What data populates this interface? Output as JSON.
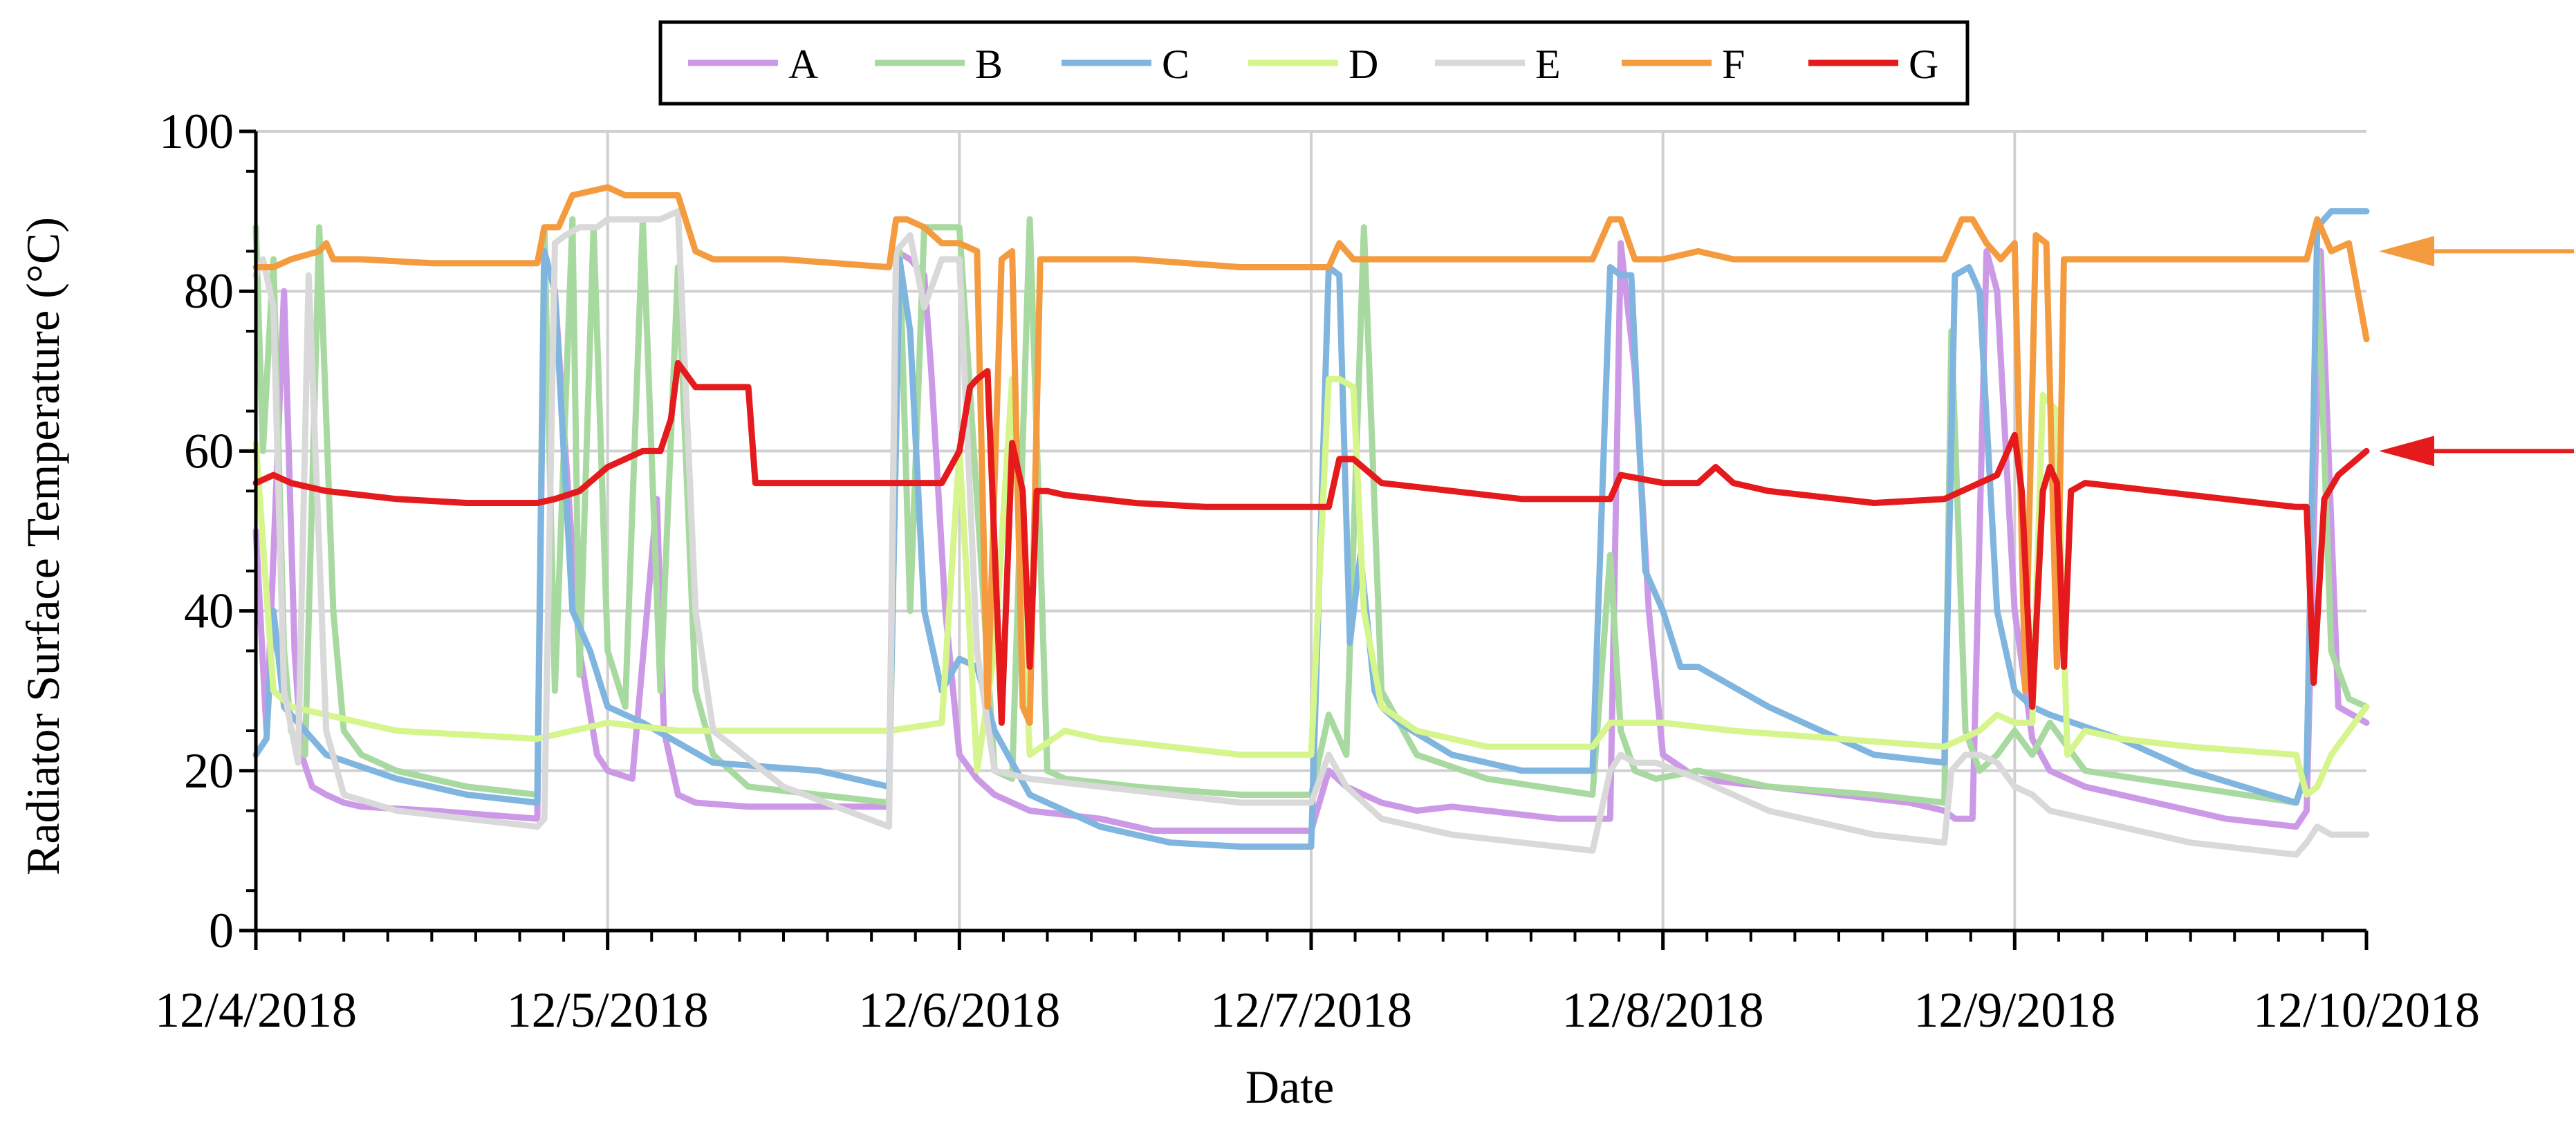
{
  "chart_data": {
    "type": "line",
    "title": "",
    "xlabel": "Date",
    "ylabel": "Radiator Surface Temperature (°C)",
    "ylim": [
      0,
      100
    ],
    "xlim": [
      0,
      6
    ],
    "y_ticks": [
      0,
      20,
      40,
      60,
      80,
      100
    ],
    "x_tick_labels": [
      "12/4/2018",
      "12/5/2018",
      "12/6/2018",
      "12/7/2018",
      "12/8/2018",
      "12/9/2018",
      "12/10/2018"
    ],
    "grid": true,
    "legend": "top-center",
    "annotations": [
      {
        "type": "arrow",
        "points_to_series": "F",
        "value": 85,
        "color": "#F39B3E"
      },
      {
        "type": "arrow",
        "points_to_series": "G",
        "value": 60,
        "color": "#E41A1C"
      }
    ],
    "series": [
      {
        "name": "A",
        "color": "#CC99E6",
        "x": [
          0,
          0.03,
          0.08,
          0.11,
          0.13,
          0.16,
          0.2,
          0.25,
          0.3,
          0.5,
          0.8,
          0.82,
          0.85,
          0.88,
          0.92,
          0.97,
          1.0,
          1.07,
          1.14,
          1.16,
          1.2,
          1.25,
          1.4,
          1.6,
          1.8,
          1.82,
          1.86,
          1.9,
          1.92,
          1.96,
          2.0,
          2.05,
          2.1,
          2.2,
          2.4,
          2.5,
          2.55,
          2.6,
          2.8,
          3.0,
          3.05,
          3.1,
          3.2,
          3.3,
          3.4,
          3.5,
          3.7,
          3.85,
          3.88,
          3.92,
          3.96,
          4.0,
          4.1,
          4.3,
          4.5,
          4.7,
          4.8,
          4.83,
          4.88,
          4.92,
          4.95,
          5.0,
          5.05,
          5.1,
          5.2,
          5.4,
          5.5,
          5.6,
          5.8,
          5.83,
          5.87,
          5.92,
          6.0
        ],
        "y": [
          50,
          25,
          80,
          35,
          22,
          18,
          17,
          16,
          15.5,
          15,
          14,
          85,
          80,
          60,
          35,
          22,
          20,
          19,
          54,
          25,
          17,
          16,
          15.5,
          15.5,
          15.5,
          85,
          84,
          82,
          70,
          40,
          22,
          19,
          17,
          15,
          14,
          13,
          12.5,
          12.5,
          12.5,
          12.5,
          20,
          18,
          16,
          15,
          15.5,
          15,
          14,
          14,
          86,
          70,
          40,
          22,
          19,
          18,
          17,
          16,
          15,
          14,
          14,
          85,
          80,
          40,
          24,
          20,
          18,
          16,
          15,
          14,
          13,
          15,
          85,
          28,
          26
        ]
      },
      {
        "name": "B",
        "color": "#A8D9A0",
        "x": [
          0,
          0.02,
          0.05,
          0.08,
          0.1,
          0.14,
          0.18,
          0.22,
          0.25,
          0.3,
          0.4,
          0.6,
          0.8,
          0.82,
          0.85,
          0.9,
          0.92,
          0.96,
          1.0,
          1.05,
          1.1,
          1.15,
          1.2,
          1.25,
          1.3,
          1.4,
          1.6,
          1.8,
          1.83,
          1.86,
          1.9,
          1.95,
          2.0,
          2.1,
          2.15,
          2.2,
          2.25,
          2.3,
          2.5,
          2.8,
          3.0,
          3.05,
          3.1,
          3.15,
          3.2,
          3.3,
          3.5,
          3.8,
          3.85,
          3.88,
          3.92,
          3.98,
          4.1,
          4.3,
          4.6,
          4.8,
          4.82,
          4.86,
          4.9,
          4.95,
          5.0,
          5.05,
          5.1,
          5.2,
          5.5,
          5.8,
          5.83,
          5.86,
          5.9,
          5.95,
          6.0
        ],
        "y": [
          88,
          60,
          84,
          35,
          25,
          22,
          88,
          40,
          25,
          22,
          20,
          18,
          17,
          88,
          30,
          89,
          32,
          88,
          35,
          28,
          89,
          30,
          83,
          30,
          22,
          18,
          17,
          16,
          85,
          40,
          88,
          88,
          88,
          20,
          19,
          89,
          20,
          19,
          18,
          17,
          17,
          27,
          22,
          88,
          30,
          22,
          19,
          17,
          47,
          25,
          20,
          19,
          20,
          18,
          17,
          16,
          75,
          25,
          20,
          22,
          25,
          22,
          26,
          20,
          18,
          16,
          20,
          85,
          35,
          29,
          28
        ]
      },
      {
        "name": "C",
        "color": "#7FB5DF",
        "x": [
          0,
          0.03,
          0.05,
          0.08,
          0.12,
          0.2,
          0.4,
          0.6,
          0.8,
          0.82,
          0.85,
          0.9,
          0.95,
          1.0,
          1.1,
          1.3,
          1.6,
          1.8,
          1.83,
          1.86,
          1.9,
          1.95,
          2.0,
          2.05,
          2.1,
          2.2,
          2.4,
          2.6,
          2.8,
          3.0,
          3.05,
          3.08,
          3.11,
          3.14,
          3.18,
          3.2,
          3.25,
          3.4,
          3.6,
          3.8,
          3.85,
          3.88,
          3.91,
          3.95,
          4.0,
          4.05,
          4.1,
          4.3,
          4.6,
          4.8,
          4.83,
          4.87,
          4.9,
          4.95,
          5.0,
          5.05,
          5.1,
          5.3,
          5.5,
          5.8,
          5.83,
          5.86,
          5.9,
          5.95,
          6.0
        ],
        "y": [
          22,
          24,
          40,
          28,
          26,
          22,
          19,
          17,
          16,
          85,
          80,
          40,
          35,
          28,
          26,
          21,
          20,
          18,
          84,
          75,
          40,
          30,
          34,
          33,
          25,
          17,
          13,
          11,
          10.5,
          10.5,
          83,
          82,
          36,
          47,
          30,
          28,
          26,
          22,
          20,
          20,
          83,
          82,
          82,
          45,
          40,
          33,
          33,
          28,
          22,
          21,
          82,
          83,
          80,
          40,
          30,
          28,
          27,
          24,
          20,
          16,
          20,
          88,
          90,
          90,
          90
        ]
      },
      {
        "name": "D",
        "color": "#D6F58C",
        "x": [
          0,
          0.05,
          0.1,
          0.2,
          0.4,
          0.8,
          1.0,
          1.2,
          1.4,
          1.8,
          1.95,
          2.0,
          2.02,
          2.05,
          2.1,
          2.15,
          2.2,
          2.3,
          2.4,
          2.6,
          2.8,
          3.0,
          3.05,
          3.08,
          3.12,
          3.15,
          3.2,
          3.3,
          3.5,
          3.8,
          3.85,
          3.88,
          3.92,
          4.0,
          4.2,
          4.5,
          4.8,
          4.9,
          4.95,
          5.0,
          5.05,
          5.08,
          5.12,
          5.15,
          5.2,
          5.3,
          5.5,
          5.8,
          5.83,
          5.86,
          5.9,
          6.0
        ],
        "y": [
          61,
          30,
          28,
          27,
          25,
          24,
          26,
          25,
          25,
          25,
          26,
          60,
          45,
          20,
          35,
          69,
          22,
          25,
          24,
          23,
          22,
          22,
          69,
          69,
          68,
          40,
          28,
          25,
          23,
          23,
          26,
          26,
          26,
          26,
          25,
          24,
          23,
          25,
          27,
          26,
          26,
          67,
          65,
          22,
          25,
          24,
          23,
          22,
          17,
          18,
          22,
          28
        ]
      },
      {
        "name": "E",
        "color": "#D9D9D9",
        "x": [
          0,
          0.02,
          0.05,
          0.08,
          0.12,
          0.15,
          0.2,
          0.25,
          0.4,
          0.6,
          0.8,
          0.82,
          0.85,
          0.88,
          0.92,
          0.97,
          1.0,
          1.05,
          1.1,
          1.15,
          1.2,
          1.25,
          1.3,
          1.5,
          1.8,
          1.82,
          1.86,
          1.9,
          1.95,
          2.0,
          2.05,
          2.1,
          2.2,
          2.4,
          2.6,
          2.8,
          3.0,
          3.05,
          3.1,
          3.2,
          3.4,
          3.6,
          3.8,
          3.85,
          3.88,
          3.92,
          3.98,
          4.1,
          4.3,
          4.6,
          4.8,
          4.82,
          4.86,
          4.9,
          4.95,
          5.0,
          5.05,
          5.1,
          5.3,
          5.5,
          5.8,
          5.83,
          5.86,
          5.9,
          5.95,
          6.0
        ],
        "y": [
          82,
          84,
          78,
          30,
          21,
          82,
          25,
          17,
          15,
          14,
          13,
          14,
          86,
          87,
          88,
          88,
          89,
          89,
          89,
          89,
          90,
          40,
          25,
          18,
          13,
          85,
          87,
          78,
          84,
          84,
          35,
          20,
          19,
          18,
          17,
          16,
          16,
          22,
          18,
          14,
          12,
          11,
          10,
          20,
          22,
          21,
          21,
          19,
          15,
          12,
          11,
          20,
          22,
          22,
          21,
          18,
          17,
          15,
          13,
          11,
          9.5,
          11,
          13,
          12,
          12,
          12
        ]
      },
      {
        "name": "F",
        "color": "#F39B3E",
        "x": [
          0,
          0.05,
          0.1,
          0.18,
          0.2,
          0.22,
          0.3,
          0.5,
          0.8,
          0.82,
          0.86,
          0.9,
          1.0,
          1.05,
          1.1,
          1.15,
          1.2,
          1.25,
          1.3,
          1.5,
          1.8,
          1.82,
          1.85,
          1.9,
          1.95,
          2.0,
          2.05,
          2.08,
          2.12,
          2.15,
          2.18,
          2.2,
          2.23,
          2.25,
          2.3,
          2.5,
          2.8,
          3.0,
          3.05,
          3.08,
          3.12,
          3.3,
          3.6,
          3.8,
          3.85,
          3.88,
          3.92,
          4.0,
          4.1,
          4.2,
          4.4,
          4.8,
          4.85,
          4.88,
          4.92,
          4.96,
          5.0,
          5.03,
          5.06,
          5.09,
          5.12,
          5.14,
          5.17,
          5.2,
          5.3,
          5.5,
          5.8,
          5.83,
          5.86,
          5.9,
          5.95,
          6.0
        ],
        "y": [
          83,
          83,
          84,
          85,
          86,
          84,
          84,
          83.5,
          83.5,
          88,
          88,
          92,
          93,
          92,
          92,
          92,
          92,
          85,
          84,
          84,
          83,
          89,
          89,
          88,
          86,
          86,
          85,
          28,
          84,
          85,
          28,
          26,
          84,
          84,
          84,
          84,
          83,
          83,
          83,
          86,
          84,
          84,
          84,
          84,
          89,
          89,
          84,
          84,
          85,
          84,
          84,
          84,
          89,
          89,
          86,
          84,
          86,
          30,
          87,
          86,
          33,
          84,
          84,
          84,
          84,
          84,
          84,
          84,
          89,
          85,
          86,
          74
        ]
      },
      {
        "name": "G",
        "color": "#E41A1C",
        "x": [
          0,
          0.05,
          0.1,
          0.2,
          0.4,
          0.6,
          0.8,
          0.85,
          0.92,
          1.0,
          1.05,
          1.1,
          1.15,
          1.18,
          1.2,
          1.25,
          1.35,
          1.38,
          1.4,
          1.42,
          1.6,
          1.8,
          1.85,
          1.9,
          1.95,
          2.0,
          2.03,
          2.05,
          2.08,
          2.12,
          2.15,
          2.18,
          2.2,
          2.22,
          2.25,
          2.3,
          2.5,
          2.7,
          2.9,
          3.0,
          3.05,
          3.08,
          3.12,
          3.2,
          3.4,
          3.6,
          3.8,
          3.85,
          3.88,
          4.0,
          4.1,
          4.15,
          4.2,
          4.3,
          4.6,
          4.8,
          4.9,
          4.95,
          5.0,
          5.02,
          5.05,
          5.08,
          5.1,
          5.12,
          5.14,
          5.16,
          5.2,
          5.4,
          5.6,
          5.8,
          5.83,
          5.85,
          5.88,
          5.92,
          6.0
        ],
        "y": [
          56,
          57,
          56,
          55,
          54,
          53.5,
          53.5,
          54,
          55,
          58,
          59,
          60,
          60,
          64,
          71,
          68,
          68,
          68,
          68,
          56,
          56,
          56,
          56,
          56,
          56,
          60,
          68,
          69,
          70,
          26,
          61,
          55,
          33,
          55,
          55,
          54.5,
          53.5,
          53,
          53,
          53,
          53,
          59,
          59,
          56,
          55,
          54,
          54,
          54,
          57,
          56,
          56,
          58,
          56,
          55,
          53.5,
          54,
          56,
          57,
          62,
          55,
          28,
          55,
          58,
          56,
          33,
          55,
          56,
          55,
          54,
          53,
          53,
          31,
          54,
          57,
          60
        ]
      }
    ]
  }
}
